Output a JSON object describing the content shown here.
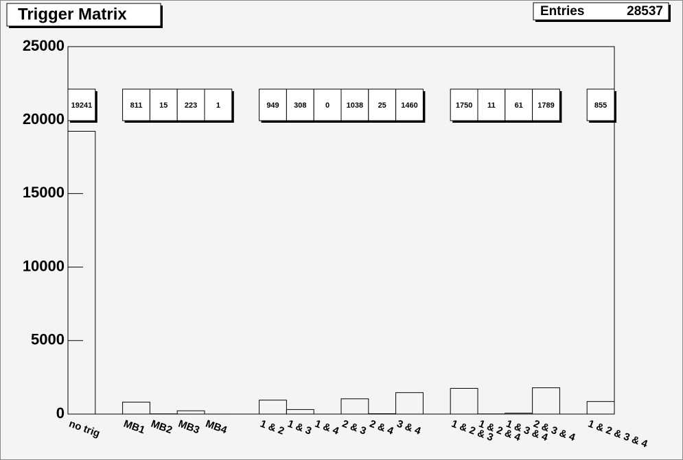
{
  "chart_data": {
    "type": "bar",
    "title": "Trigger Matrix",
    "stats_label": "Entries",
    "stats_value": 28537,
    "categories": [
      "no trig",
      null,
      "MB1",
      "MB2",
      "MB3",
      "MB4",
      null,
      "1 & 2",
      "1 & 3",
      "1 & 4",
      "2 & 3",
      "2 & 4",
      "3 & 4",
      null,
      "1 & 2 & 3",
      "1 & 2 & 4",
      "1 & 3 & 4",
      "2 & 3 & 4",
      null,
      "1 & 2 & 3 & 4"
    ],
    "values": [
      19241,
      null,
      811,
      15,
      223,
      1,
      null,
      949,
      308,
      0,
      1038,
      25,
      1460,
      null,
      1750,
      11,
      61,
      1789,
      null,
      855
    ],
    "color": "#000000",
    "ylim": [
      0,
      25000
    ],
    "yticks": [
      0,
      5000,
      10000,
      15000,
      20000,
      25000
    ]
  }
}
